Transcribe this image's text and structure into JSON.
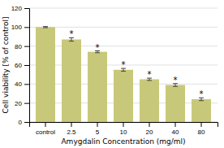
{
  "chart_data": {
    "type": "bar",
    "categories": [
      "control",
      "2.5",
      "5",
      "10",
      "20",
      "40",
      "80"
    ],
    "values": [
      100,
      87,
      74,
      55,
      45,
      39,
      24
    ],
    "errors": [
      0.6,
      1.8,
      1.0,
      1.5,
      1.2,
      1.5,
      1.5
    ],
    "annotations": [
      null,
      "*",
      "*",
      "*",
      "*",
      "*",
      "*"
    ],
    "color": "#c8c87a",
    "xlabel": "Amygdalin Concentration (mg/ml)",
    "ylabel": "Cell viability [% of control]",
    "ylim": [
      0,
      120
    ],
    "yticks": [
      0,
      20,
      40,
      60,
      80,
      100,
      120
    ],
    "grid": true
  }
}
